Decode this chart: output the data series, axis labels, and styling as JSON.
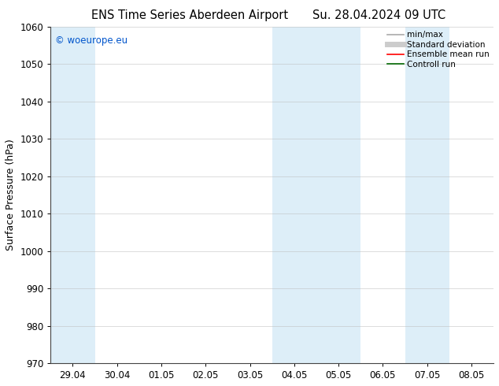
{
  "title_left": "ENS Time Series Aberdeen Airport",
  "title_right": "Su. 28.04.2024 09 UTC",
  "ylabel": "Surface Pressure (hPa)",
  "ylim": [
    970,
    1060
  ],
  "yticks": [
    970,
    980,
    990,
    1000,
    1010,
    1020,
    1030,
    1040,
    1050,
    1060
  ],
  "xtick_labels": [
    "29.04",
    "30.04",
    "01.05",
    "02.05",
    "03.05",
    "04.05",
    "05.05",
    "06.05",
    "07.05",
    "08.05"
  ],
  "background_color": "#ffffff",
  "plot_bg_color": "#ffffff",
  "shaded_bands": [
    {
      "xstart": 0,
      "xend": 1,
      "color": "#ddeef8"
    },
    {
      "xstart": 5,
      "xend": 7,
      "color": "#ddeef8"
    },
    {
      "xstart": 8,
      "xend": 9,
      "color": "#ddeef8"
    }
  ],
  "watermark_text": "© woeurope.eu",
  "watermark_color": "#0055cc",
  "legend_items": [
    {
      "label": "min/max",
      "color": "#aaaaaa",
      "lw": 1.2
    },
    {
      "label": "Standard deviation",
      "color": "#cccccc",
      "lw": 5
    },
    {
      "label": "Ensemble mean run",
      "color": "#ff0000",
      "lw": 1.2
    },
    {
      "label": "Controll run",
      "color": "#006600",
      "lw": 1.2
    }
  ],
  "grid_color": "#bbbbbb",
  "grid_alpha": 0.7,
  "tick_fontsize": 8.5,
  "label_fontsize": 9,
  "title_fontsize": 10.5,
  "figsize": [
    6.34,
    4.9
  ],
  "dpi": 100
}
